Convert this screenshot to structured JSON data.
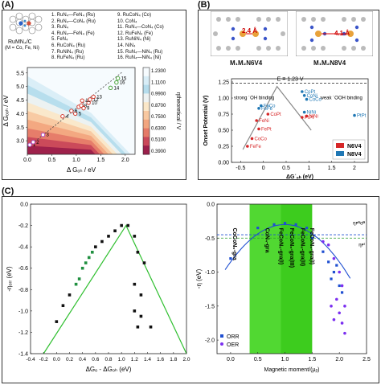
{
  "panels": {
    "a": {
      "label": "(A)",
      "catalyst_name": "RuMN₄/C",
      "catalyst_note": "(M = Co, Fe, Ni)",
      "legend_col1": [
        "1. RuN₄—FeN₄ (Ru)",
        "2. RuN₄—CoN₄ (Ru)",
        "3. RuN₄",
        "4. RuN₄—FeN₄ (Fe)",
        "5. FeN₄",
        "6. RuCoN₄ (Ru)",
        "7. RuNiN₄ (Ru)",
        "8. RuFeN₄ (Ru)"
      ],
      "legend_col2": [
        "9. RuCoN₄ (Co)",
        "10. CoN₄",
        "11. RuN₄—CoN₄ (Co)",
        "12. RuFeN₄ (Fe)",
        "13. RuNiN₄ (Ni)",
        "14. NiN₄",
        "15. RuN₄—NiN₄ (Ru)",
        "16. RuN₄—NiN₄ (Ni)"
      ],
      "xlabel": "Δ Gₒₕ / eV",
      "ylabel": "Δ Gₒₒₕ / eV",
      "colorbar_label": "ηtheoretical / V",
      "colorbar_ticks": [
        "1.2300",
        "1.1100",
        "0.9900",
        "0.8700",
        "0.7500",
        "0.6300",
        "0.5100",
        "0.3900"
      ],
      "colorbar_colors": [
        "#f6fbfe",
        "#d8edf7",
        "#b5dcec",
        "#eef2f2",
        "#fbe7c8",
        "#f8c8a0",
        "#f2a57f",
        "#e57a68",
        "#c9485a",
        "#9b1f4b"
      ]
    },
    "b": {
      "label": "(B)",
      "struct_left": "M₁M₂N6V4",
      "struct_right": "M₁M₂N8V4",
      "dist_left": "2.4 Å",
      "dist_right": "4.1 Å",
      "equilibrium": "E = 1.23 V",
      "region_left": "strong ˙OH binding",
      "region_right": "weak ˙OOH binding",
      "ylabel": "Onset Potential (V)",
      "xlabel": "ΔG˙ₒₕ (eV)",
      "legend": [
        {
          "name": "N6V4",
          "color": "#d62728"
        },
        {
          "name": "N8V4",
          "color": "#1f77b4"
        }
      ],
      "points_red": [
        "FeNi",
        "FePt",
        "CoPt",
        "CoCo",
        "FeFe",
        "NiNi",
        "PtPt"
      ],
      "points_blue": [
        "FeCo",
        "CoNi",
        "CoPt",
        "CoCo",
        "NiNi",
        "FeFe",
        "PtPt"
      ]
    },
    "c": {
      "label": "(C)",
      "left_ylabel": "-ηₒᵣᵣ (eV)",
      "left_xlabel": "ΔGₒ - ΔGₒₕ (eV)",
      "right_ylabel": "-η (eV)",
      "right_xlabel": "Magnetic moment/(μᵦ)",
      "eta_top": "ηᴘᴺᴏᴯ",
      "eta_bottom": "ηᴘᵗ",
      "right_legend": [
        {
          "name": "ORR",
          "color": "#1f4fd1"
        },
        {
          "name": "OER",
          "color": "#7b2ff0"
        }
      ],
      "vertical_labels": [
        "CoCoN₆-gra",
        "CoN₄-gra",
        "FeCoN₆-gra(I)",
        "FeCoN₆-gra(III)",
        "FeCoN₆-gra(II)",
        "FeCoN₆-gra(I)"
      ]
    }
  },
  "chart_data": [
    {
      "type": "heatmap",
      "title": "",
      "xlabel": "Δ Gₒₕ / eV",
      "ylabel": "Δ Gₒₒₕ / eV",
      "xlim": [
        0.0,
        2.2
      ],
      "ylim": [
        2.5,
        5.7
      ],
      "xticks": [
        0.0,
        0.5,
        1.0,
        1.5,
        2.0
      ],
      "yticks": [
        3.0,
        3.5,
        4.0,
        4.5,
        5.0,
        5.5
      ],
      "points": [
        {
          "label": "1",
          "x": 0.05,
          "y": 2.85
        },
        {
          "label": "2",
          "x": 0.12,
          "y": 2.95
        },
        {
          "label": "3",
          "x": 0.32,
          "y": 3.22
        },
        {
          "label": "4",
          "x": 0.72,
          "y": 3.9
        },
        {
          "label": "5",
          "x": 0.98,
          "y": 4.0
        },
        {
          "label": "6",
          "x": 0.9,
          "y": 4.1
        },
        {
          "label": "7",
          "x": 1.05,
          "y": 4.25
        },
        {
          "label": "8",
          "x": 1.1,
          "y": 4.3
        },
        {
          "label": "9",
          "x": 1.15,
          "y": 4.2
        },
        {
          "label": "10",
          "x": 1.25,
          "y": 4.4
        },
        {
          "label": "11",
          "x": 1.12,
          "y": 4.48
        },
        {
          "label": "12",
          "x": 1.28,
          "y": 4.52
        },
        {
          "label": "13",
          "x": 1.35,
          "y": 4.62
        },
        {
          "label": "14",
          "x": 1.7,
          "y": 4.95
        },
        {
          "label": "15",
          "x": 1.85,
          "y": 5.3
        },
        {
          "label": "16",
          "x": 1.82,
          "y": 5.15
        }
      ]
    },
    {
      "type": "scatter",
      "title": "",
      "xlabel": "ΔG˙ₒₕ (eV)",
      "ylabel": "Onset Potential (V)",
      "xlim": [
        -0.7,
        2.3
      ],
      "ylim": [
        0.0,
        1.3
      ],
      "xticks": [
        -0.5,
        0.0,
        0.5,
        1.0,
        1.5,
        2.0
      ],
      "yticks": [
        0.0,
        0.25,
        0.5,
        0.75,
        1.0,
        1.25
      ],
      "series": [
        {
          "name": "N6V4",
          "points": [
            {
              "label": "FeFe",
              "x": -0.35,
              "y": 0.25
            },
            {
              "label": "CoCo",
              "x": -0.25,
              "y": 0.37
            },
            {
              "label": "FePt",
              "x": -0.1,
              "y": 0.52
            },
            {
              "label": "FeNi",
              "x": -0.15,
              "y": 0.65
            },
            {
              "label": "CoPt",
              "x": 0.1,
              "y": 0.75
            },
            {
              "label": "NiNi",
              "x": 0.95,
              "y": 0.72
            },
            {
              "label": "PtPt",
              "x": 0.85,
              "y": 0.7
            }
          ]
        },
        {
          "name": "N8V4",
          "points": [
            {
              "label": "FeCo",
              "x": -0.05,
              "y": 0.88
            },
            {
              "label": "FeFe",
              "x": -0.1,
              "y": 0.84
            },
            {
              "label": "CoNi",
              "x": 0.9,
              "y": 1.04
            },
            {
              "label": "CoCo",
              "x": 0.95,
              "y": 0.98
            },
            {
              "label": "CoPt",
              "x": 0.85,
              "y": 1.1
            },
            {
              "label": "NiNi",
              "x": 0.9,
              "y": 0.78
            },
            {
              "label": "PtPt",
              "x": 2.0,
              "y": 0.73
            }
          ]
        }
      ]
    },
    {
      "type": "scatter",
      "title": "",
      "xlabel": "ΔGₒ - ΔGₒₕ (eV)",
      "ylabel": "-ηₒᵣᵣ (eV)",
      "xlim": [
        -0.4,
        2.0
      ],
      "ylim": [
        -1.4,
        0.0
      ],
      "xticks": [
        -0.4,
        -0.2,
        0.0,
        0.2,
        0.4,
        0.6,
        0.8,
        1.0,
        1.2,
        1.4,
        1.6,
        1.8,
        2.0
      ],
      "yticks": [
        -1.4,
        -1.2,
        -1.0,
        -0.8,
        -0.6,
        -0.4,
        -0.2,
        0.0
      ],
      "series": [
        {
          "name": "catalysts",
          "points": [
            {
              "x": 0.0,
              "y": -1.1
            },
            {
              "x": 0.1,
              "y": -0.95
            },
            {
              "x": 0.2,
              "y": -0.85
            },
            {
              "x": 0.3,
              "y": -0.75
            },
            {
              "x": 0.35,
              "y": -0.7
            },
            {
              "x": 0.4,
              "y": -0.6
            },
            {
              "x": 0.45,
              "y": -0.55
            },
            {
              "x": 0.5,
              "y": -0.5
            },
            {
              "x": 0.55,
              "y": -0.45
            },
            {
              "x": 0.6,
              "y": -0.4
            },
            {
              "x": 0.7,
              "y": -0.35
            },
            {
              "x": 0.8,
              "y": -0.3
            },
            {
              "x": 0.9,
              "y": -0.25
            },
            {
              "x": 1.0,
              "y": -0.2
            },
            {
              "x": 1.1,
              "y": -0.2
            },
            {
              "x": 1.2,
              "y": -0.3
            },
            {
              "x": 1.25,
              "y": -0.45
            },
            {
              "x": 1.35,
              "y": -0.55
            },
            {
              "x": 1.2,
              "y": -0.75
            },
            {
              "x": 1.3,
              "y": -0.85
            },
            {
              "x": 1.2,
              "y": -1.0
            },
            {
              "x": 1.3,
              "y": -1.05
            },
            {
              "x": 1.45,
              "y": -1.15
            },
            {
              "x": 1.25,
              "y": -1.15
            }
          ]
        }
      ]
    },
    {
      "type": "scatter",
      "title": "",
      "xlabel": "Magnetic moment/(μᵦ)",
      "ylabel": "-η (eV)",
      "xlim": [
        -0.25,
        2.5
      ],
      "ylim": [
        -2.2,
        0.0
      ],
      "xticks": [
        0.0,
        0.5,
        1.0,
        1.5,
        2.0,
        2.5
      ],
      "yticks": [
        -2.0,
        -1.5,
        -1.0,
        -0.5,
        0.0
      ],
      "series": [
        {
          "name": "ORR",
          "points": [
            {
              "x": 0.0,
              "y": -0.8
            },
            {
              "x": 0.5,
              "y": -0.35
            },
            {
              "x": 0.8,
              "y": -0.3
            },
            {
              "x": 1.0,
              "y": -0.28
            },
            {
              "x": 1.2,
              "y": -0.3
            },
            {
              "x": 1.4,
              "y": -0.35
            },
            {
              "x": 1.5,
              "y": -0.5
            },
            {
              "x": 1.7,
              "y": -0.7
            },
            {
              "x": 1.8,
              "y": -0.85
            },
            {
              "x": 1.9,
              "y": -1.0
            },
            {
              "x": 2.0,
              "y": -1.2
            },
            {
              "x": 2.05,
              "y": -1.3
            },
            {
              "x": 1.95,
              "y": -0.9
            },
            {
              "x": 1.85,
              "y": -1.1
            }
          ]
        },
        {
          "name": "OER",
          "points": [
            {
              "x": 1.7,
              "y": -0.55
            },
            {
              "x": 1.8,
              "y": -0.6
            },
            {
              "x": 1.9,
              "y": -0.8
            },
            {
              "x": 2.0,
              "y": -1.0
            },
            {
              "x": 2.05,
              "y": -1.2
            },
            {
              "x": 1.95,
              "y": -1.4
            },
            {
              "x": 2.1,
              "y": -1.5
            },
            {
              "x": 2.0,
              "y": -1.6
            },
            {
              "x": 1.9,
              "y": -1.7
            },
            {
              "x": 2.05,
              "y": -1.75
            },
            {
              "x": 2.1,
              "y": -1.9
            },
            {
              "x": 1.85,
              "y": -1.5
            }
          ]
        }
      ]
    }
  ]
}
